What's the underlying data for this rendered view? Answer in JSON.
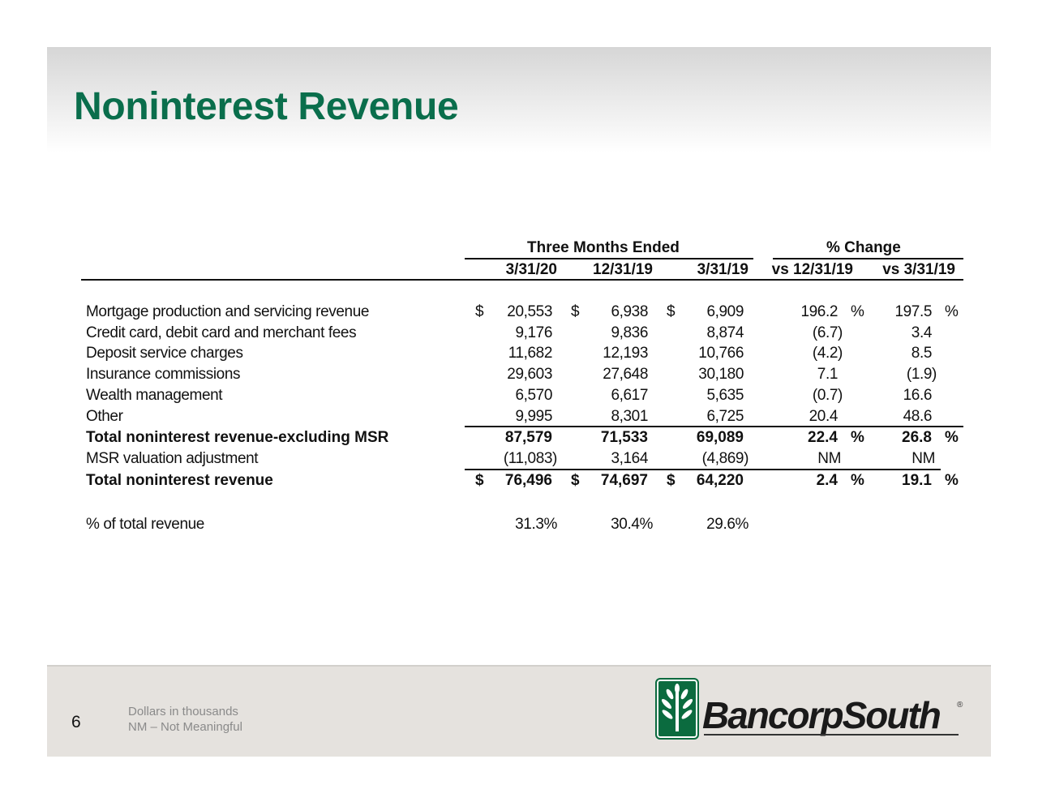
{
  "title": "Noninterest Revenue",
  "table": {
    "group_headers": [
      "Three Months Ended",
      "% Change"
    ],
    "columns": [
      "3/31/20",
      "12/31/19",
      "3/31/19",
      "vs 12/31/19",
      "vs 3/31/19"
    ],
    "rows": [
      {
        "label": "Mortgage production and servicing revenue",
        "bold": false,
        "dollar": true,
        "values": [
          "20,553",
          "6,938",
          "6,909"
        ],
        "pct": [
          "196.2",
          "197.5"
        ],
        "pct_sign": true
      },
      {
        "label": "Credit card, debit card and merchant fees",
        "bold": false,
        "dollar": false,
        "values": [
          "9,176",
          "9,836",
          "8,874"
        ],
        "pct": [
          "(6.7)",
          "3.4"
        ],
        "pct_sign": false
      },
      {
        "label": "Deposit service charges",
        "bold": false,
        "dollar": false,
        "values": [
          "11,682",
          "12,193",
          "10,766"
        ],
        "pct": [
          "(4.2)",
          "8.5"
        ],
        "pct_sign": false
      },
      {
        "label": "Insurance commissions",
        "bold": false,
        "dollar": false,
        "values": [
          "29,603",
          "27,648",
          "30,180"
        ],
        "pct": [
          "7.1",
          "(1.9)"
        ],
        "pct_sign": false
      },
      {
        "label": "Wealth management",
        "bold": false,
        "dollar": false,
        "values": [
          "6,570",
          "6,617",
          "5,635"
        ],
        "pct": [
          "(0.7)",
          "16.6"
        ],
        "pct_sign": false
      },
      {
        "label": "Other",
        "bold": false,
        "dollar": false,
        "values": [
          "9,995",
          "8,301",
          "6,725"
        ],
        "pct": [
          "20.4",
          "48.6"
        ],
        "pct_sign": false
      },
      {
        "label": "Total noninterest revenue-excluding MSR",
        "bold": true,
        "dollar": false,
        "values": [
          "87,579",
          "71,533",
          "69,089"
        ],
        "pct": [
          "22.4",
          "26.8"
        ],
        "pct_sign": true
      },
      {
        "label": "MSR valuation adjustment",
        "bold": false,
        "dollar": false,
        "values": [
          "(11,083)",
          "3,164",
          "(4,869)"
        ],
        "pct": [
          "NM",
          "NM"
        ],
        "pct_sign": false
      },
      {
        "label": "Total noninterest revenue",
        "bold": true,
        "dollar": true,
        "values": [
          "76,496",
          "74,697",
          "64,220"
        ],
        "pct": [
          "2.4",
          "19.1"
        ],
        "pct_sign": true
      }
    ],
    "pct_of_total": {
      "label": "% of total revenue",
      "values": [
        "31.3%",
        "30.4%",
        "29.6%"
      ]
    },
    "dollar_sign": "$",
    "percent_sign": "%"
  },
  "footer": {
    "page_number": "6",
    "notes": [
      "Dollars in thousands",
      "NM – Not Meaningful"
    ],
    "logo_text": "BancorpSouth"
  },
  "colors": {
    "title": "#0a6e4c",
    "logo_green": "#0b6b3f"
  }
}
